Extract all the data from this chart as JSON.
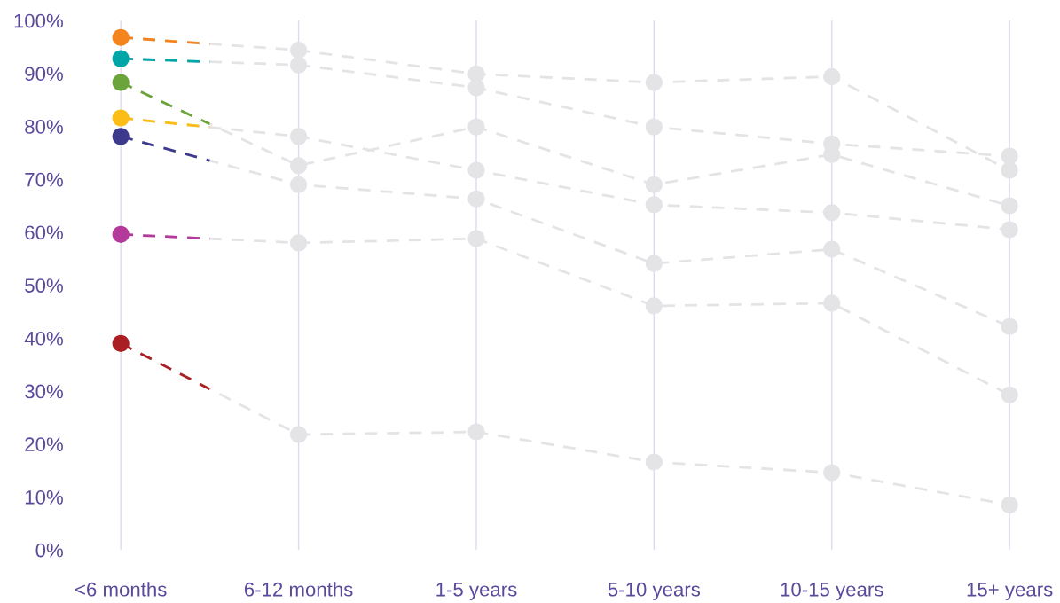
{
  "chart_data": {
    "type": "line",
    "categories": [
      "<6 months",
      "6-12 months",
      "1-5 years",
      "5-10 years",
      "10-15 years",
      "15+ years"
    ],
    "series": [
      {
        "colors": [
          "#f5841f",
          "#e4e4e7",
          "#e4e4e7",
          "#e4e4e7",
          "#e4e4e7",
          "#e4e4e7"
        ],
        "values": [
          96.8,
          94.4,
          89.9,
          88.3,
          89.4,
          71.7
        ]
      },
      {
        "colors": [
          "#00a5a8",
          "#e4e4e7",
          "#e4e4e7",
          "#e4e4e7",
          "#e4e4e7",
          "#e4e4e7"
        ],
        "values": [
          92.8,
          91.6,
          87.3,
          79.9,
          76.7,
          74.4
        ]
      },
      {
        "colors": [
          "#6ba43a",
          "#e4e4e7",
          "#e4e4e7",
          "#e4e4e7",
          "#e4e4e7",
          "#e4e4e7"
        ],
        "values": [
          88.3,
          72.6,
          79.9,
          69.0,
          74.7,
          65.0
        ]
      },
      {
        "colors": [
          "#fbbd16",
          "#e4e4e7",
          "#e4e4e7",
          "#e4e4e7",
          "#e4e4e7",
          "#e4e4e7"
        ],
        "values": [
          81.6,
          78.1,
          71.7,
          65.2,
          63.7,
          60.5
        ]
      },
      {
        "colors": [
          "#3d3a8e",
          "#e4e4e7",
          "#e4e4e7",
          "#e4e4e7",
          "#e4e4e7",
          "#e4e4e7"
        ],
        "values": [
          78.1,
          69.0,
          66.3,
          54.1,
          56.8,
          42.2
        ]
      },
      {
        "colors": [
          "#b5399a",
          "#e4e4e7",
          "#e4e4e7",
          "#e4e4e7",
          "#e4e4e7",
          "#e4e4e7"
        ],
        "values": [
          59.6,
          58.0,
          58.8,
          46.1,
          46.6,
          29.3
        ]
      },
      {
        "colors": [
          "#a91f23",
          "#e4e4e7",
          "#e4e4e7",
          "#e4e4e7",
          "#e4e4e7",
          "#e4e4e7"
        ],
        "values": [
          39.0,
          21.8,
          22.3,
          16.6,
          14.6,
          8.5
        ]
      }
    ],
    "ylim": [
      0,
      100
    ],
    "yticks": [
      {
        "value": 0,
        "label": "0%"
      },
      {
        "value": 10,
        "label": "10%"
      },
      {
        "value": 20,
        "label": "20%"
      },
      {
        "value": 30,
        "label": "30%"
      },
      {
        "value": 40,
        "label": "40%"
      },
      {
        "value": 50,
        "label": "50%"
      },
      {
        "value": 60,
        "label": "60%"
      },
      {
        "value": 70,
        "label": "70%"
      },
      {
        "value": 80,
        "label": "80%"
      },
      {
        "value": 90,
        "label": "90%"
      },
      {
        "value": 100,
        "label": "100%"
      }
    ],
    "grid": "x",
    "marker": "circle",
    "line_style": "dashed"
  }
}
